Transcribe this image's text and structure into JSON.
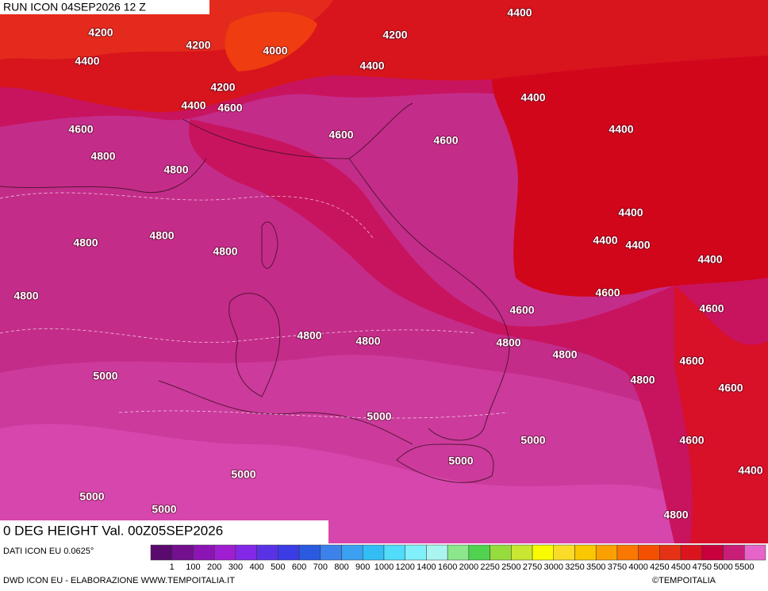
{
  "header": {
    "run": "RUN ICON 04SEP2026 12 Z"
  },
  "map": {
    "title": "0 DEG HEIGHT Val. 00Z05SEP2026",
    "contour_labels": [
      "4400",
      "4200",
      "4200",
      "4200",
      "4000",
      "4400",
      "4400",
      "4200",
      "4400",
      "4600",
      "4400",
      "4600",
      "4600",
      "4600",
      "4400",
      "4800",
      "4800",
      "4400",
      "4800",
      "4800",
      "4800",
      "4400",
      "4400",
      "4400",
      "4800",
      "4600",
      "4600",
      "4600",
      "4800",
      "4800",
      "4800",
      "4800",
      "5000",
      "4600",
      "4800",
      "4600",
      "5000",
      "5000",
      "4600",
      "5000",
      "5000",
      "4400",
      "5000",
      "5000",
      "4800"
    ]
  },
  "legend": {
    "source": "DATI ICON EU 0.0625°",
    "labels": [
      "1",
      "100",
      "200",
      "300",
      "400",
      "500",
      "600",
      "700",
      "800",
      "900",
      "1000",
      "1200",
      "1400",
      "1600",
      "2000",
      "2250",
      "2500",
      "2750",
      "3000",
      "3250",
      "3500",
      "3750",
      "4000",
      "4250",
      "4500",
      "4750",
      "5000",
      "5500"
    ],
    "colors": [
      "#5a0a6e",
      "#72108e",
      "#8c14b4",
      "#a01ed2",
      "#8228e6",
      "#5a32e6",
      "#3c3ce6",
      "#2a5ae0",
      "#3c82ea",
      "#3ca0f0",
      "#32bef5",
      "#50dcfa",
      "#82f0fa",
      "#aaf5f0",
      "#8ce68c",
      "#50d250",
      "#96dc3c",
      "#c8e632",
      "#fafa00",
      "#fadc28",
      "#fac800",
      "#faa000",
      "#fa7800",
      "#f55000",
      "#e63214",
      "#dc141e",
      "#c8003c",
      "#c81e78",
      "#e664c8"
    ]
  },
  "footer": {
    "credit": "DWD ICON EU - ELABORAZIONE WWW.TEMPOITALIA.IT",
    "copyright": "©TEMPOITALIA"
  }
}
